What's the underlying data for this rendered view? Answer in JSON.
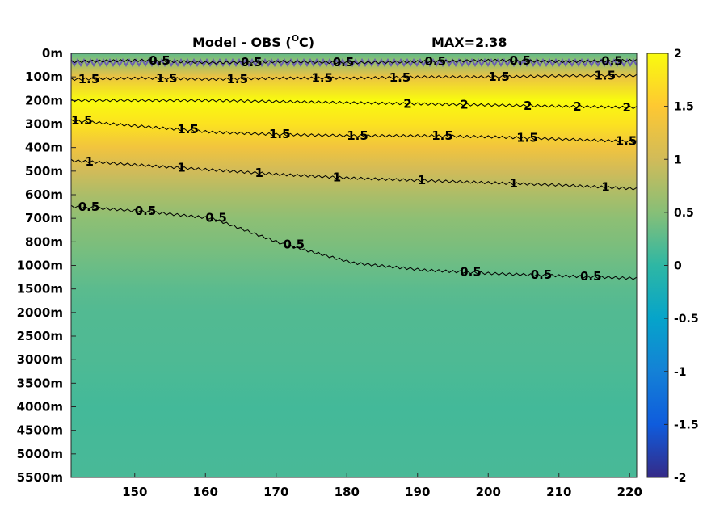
{
  "chart_data": {
    "type": "heatmap",
    "title": "Model - OBS (",
    "title_sup": "O",
    "title_unit": "C)",
    "max_label": "MAX=2.38",
    "colormap": "parula",
    "colors": [
      "#352a87",
      "#0f5cdd",
      "#1481d6",
      "#06a4ca",
      "#2eb7a4",
      "#87bf77",
      "#d1bb59",
      "#fec832",
      "#f9fb0e"
    ],
    "x_ticks": [
      150,
      160,
      170,
      180,
      190,
      200,
      210,
      220
    ],
    "xlim": [
      141,
      221
    ],
    "y_tick_labels": [
      "0m",
      "100m",
      "200m",
      "300m",
      "400m",
      "500m",
      "600m",
      "700m",
      "800m",
      "1000m",
      "1500m",
      "2000m",
      "2500m",
      "3000m",
      "3500m",
      "4000m",
      "4500m",
      "5000m",
      "5500m"
    ],
    "clim": [
      -2,
      2
    ],
    "colorbar_ticks": [
      "2",
      "1.5",
      "1",
      "0.5",
      "0",
      "-0.5",
      "-1",
      "-1.5",
      "-2"
    ],
    "depth_profile": [
      {
        "depth": "0m",
        "value": 0.3
      },
      {
        "depth": "100m",
        "value": 1.3
      },
      {
        "depth": "200m",
        "value": 2.1
      },
      {
        "depth": "300m",
        "value": 1.75
      },
      {
        "depth": "400m",
        "value": 1.35
      },
      {
        "depth": "500m",
        "value": 1.0
      },
      {
        "depth": "600m",
        "value": 0.75
      },
      {
        "depth": "700m",
        "value": 0.55
      },
      {
        "depth": "800m",
        "value": 0.45
      },
      {
        "depth": "1000m",
        "value": 0.35
      },
      {
        "depth": "1500m",
        "value": 0.25
      },
      {
        "depth": "2000m",
        "value": 0.2
      },
      {
        "depth": "3000m",
        "value": 0.18
      },
      {
        "depth": "4000m",
        "value": 0.12
      },
      {
        "depth": "5500m",
        "value": 0.15
      }
    ],
    "contours": [
      {
        "level": "1.5",
        "depth_index": [
          2.85,
          3.1,
          3.35,
          3.45,
          3.5,
          3.5,
          3.55,
          3.65,
          3.75
        ],
        "label_x": [
          141,
          156,
          169,
          180,
          192,
          204,
          218
        ]
      },
      {
        "level": "1",
        "depth_index": [
          4.55,
          4.75,
          4.95,
          5.15,
          5.3,
          5.4,
          5.5,
          5.6,
          5.75
        ],
        "label_x": [
          143,
          156,
          167,
          178,
          190,
          203,
          216
        ]
      },
      {
        "level": "0.5",
        "depth_index": [
          6.5,
          6.7,
          7.0,
          8.1,
          8.9,
          9.2,
          9.35,
          9.45,
          9.55
        ],
        "label_x": [
          142,
          150,
          160,
          171,
          196,
          206,
          213
        ]
      },
      {
        "level": "1.5",
        "depth_index": [
          1.1,
          1.05,
          1.1,
          1.05,
          1.05,
          1.0,
          1.0,
          0.95,
          0.95
        ],
        "label_x": [
          142,
          153,
          163,
          175,
          186,
          200,
          215
        ]
      },
      {
        "level": "2",
        "depth_index": [
          2.0,
          2.0,
          2.0,
          2.05,
          2.1,
          2.15,
          2.2,
          2.25,
          2.3
        ],
        "label_x": [
          188,
          196,
          205,
          212,
          219
        ]
      },
      {
        "level": "0.5",
        "depth_index": [
          0.35,
          0.3,
          0.4,
          0.35,
          0.4,
          0.35,
          0.3,
          0.35,
          0.3
        ],
        "label_x": [
          152,
          165,
          178,
          191,
          203,
          216
        ]
      }
    ]
  }
}
